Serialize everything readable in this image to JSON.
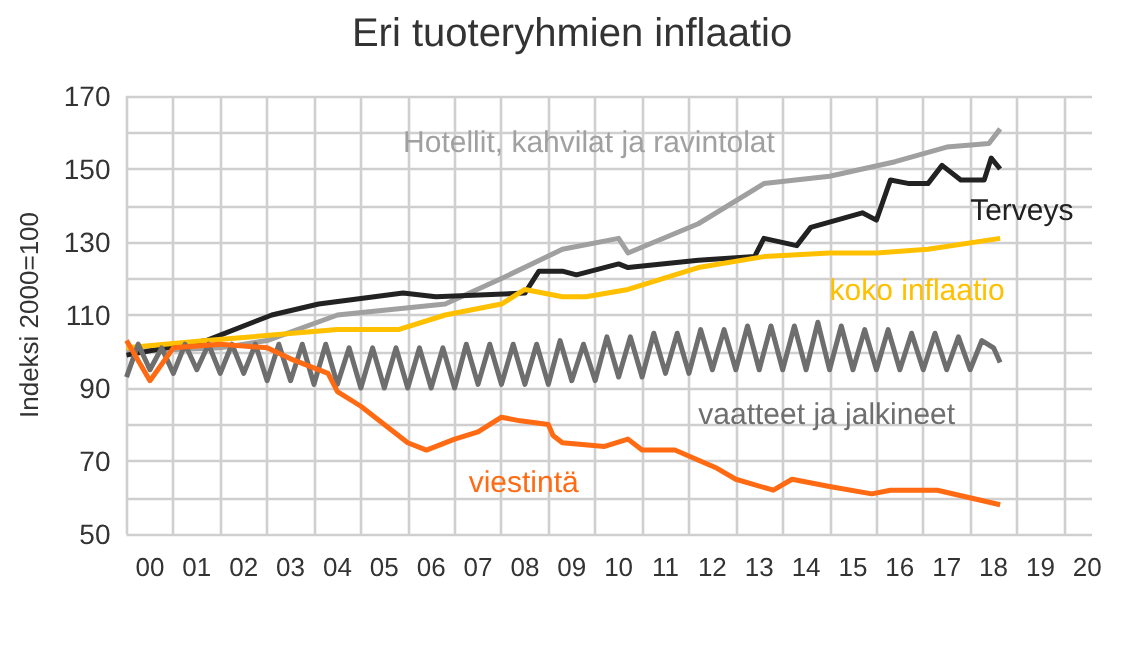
{
  "chart_data": {
    "type": "line",
    "title": "Eri tuoteryhmien inflaatio",
    "ylabel": "Indeksi 2000=100",
    "xlim": [
      -0.5,
      20.1
    ],
    "ylim": [
      50,
      170
    ],
    "xticks": [
      {
        "value": 0,
        "label": "00"
      },
      {
        "value": 1,
        "label": "01"
      },
      {
        "value": 2,
        "label": "02"
      },
      {
        "value": 3,
        "label": "03"
      },
      {
        "value": 4,
        "label": "04"
      },
      {
        "value": 5,
        "label": "05"
      },
      {
        "value": 6,
        "label": "06"
      },
      {
        "value": 7,
        "label": "07"
      },
      {
        "value": 8,
        "label": "08"
      },
      {
        "value": 9,
        "label": "09"
      },
      {
        "value": 10,
        "label": "10"
      },
      {
        "value": 11,
        "label": "11"
      },
      {
        "value": 12,
        "label": "12"
      },
      {
        "value": 13,
        "label": "13"
      },
      {
        "value": 14,
        "label": "14"
      },
      {
        "value": 15,
        "label": "15"
      },
      {
        "value": 16,
        "label": "16"
      },
      {
        "value": 17,
        "label": "17"
      },
      {
        "value": 18,
        "label": "18"
      },
      {
        "value": 19,
        "label": "19"
      },
      {
        "value": 20,
        "label": "20"
      }
    ],
    "yticks": [
      50,
      {
        "value": 60,
        "label": null
      },
      70,
      {
        "value": 80,
        "label": null
      },
      90,
      {
        "value": 100,
        "label": null
      },
      110,
      {
        "value": 120,
        "label": null
      },
      130,
      {
        "value": 140,
        "label": null
      },
      150,
      {
        "value": 160,
        "label": null
      },
      170
    ],
    "grid": true,
    "marker": "none",
    "series": [
      {
        "name": "Hotellit, kahvilat ja ravintolat",
        "color": "#a0a0a0",
        "x": [
          -0.5,
          1.5,
          2.5,
          4,
          6.3,
          7.5,
          8.8,
          10,
          10.2,
          11.7,
          13.1,
          14.5,
          15.9,
          17,
          17.9,
          18.14
        ],
        "values": [
          100,
          101,
          103,
          110,
          113,
          120,
          128,
          131,
          127,
          135,
          146,
          148,
          152,
          156,
          157,
          161
        ]
      },
      {
        "name": "Terveys",
        "color": "#222222",
        "x": [
          -0.5,
          1.2,
          2.6,
          3.6,
          5.4,
          6.1,
          8,
          8.3,
          8.8,
          9.1,
          10,
          10.2,
          11.7,
          12.9,
          13.1,
          13.8,
          14.1,
          15.2,
          15.5,
          15.8,
          16.2,
          16.6,
          16.9,
          17.3,
          17.8,
          17.95,
          18.14
        ],
        "values": [
          99,
          103,
          110,
          113,
          116,
          115,
          116,
          122,
          122,
          121,
          124,
          123,
          125,
          126,
          131,
          129,
          134,
          138,
          136,
          147,
          146,
          146,
          151,
          147,
          147,
          153,
          150
        ]
      },
      {
        "name": "koko inflaatio",
        "color": "#ffc000",
        "x": [
          -0.5,
          1.2,
          4,
          5.3,
          6.3,
          7.5,
          8,
          8.8,
          9.3,
          10.2,
          11.7,
          13.1,
          14.5,
          15.5,
          16.6,
          18.14
        ],
        "values": [
          101,
          103,
          106,
          106,
          110,
          113,
          117,
          115,
          115,
          117,
          123,
          126,
          127,
          127,
          128,
          131
        ]
      },
      {
        "name": "vaatteet ja jalkineet",
        "color": "#6e6e6e",
        "x": [
          -0.5,
          -0.25,
          0,
          0.25,
          0.5,
          0.75,
          1,
          1.25,
          1.5,
          1.75,
          2,
          2.25,
          2.5,
          2.75,
          3,
          3.25,
          3.5,
          3.75,
          4,
          4.25,
          4.5,
          4.75,
          5,
          5.25,
          5.5,
          5.75,
          6,
          6.25,
          6.5,
          6.75,
          7,
          7.25,
          7.5,
          7.75,
          8,
          8.25,
          8.5,
          8.75,
          9,
          9.25,
          9.5,
          9.75,
          10,
          10.25,
          10.5,
          10.75,
          11,
          11.25,
          11.5,
          11.75,
          12,
          12.25,
          12.5,
          12.75,
          13,
          13.25,
          13.5,
          13.75,
          14,
          14.25,
          14.5,
          14.75,
          15,
          15.25,
          15.5,
          15.75,
          16,
          16.25,
          16.5,
          16.75,
          17,
          17.25,
          17.5,
          17.75,
          18,
          18.14
        ],
        "values": [
          93,
          102,
          95,
          101,
          94,
          102,
          95,
          102,
          94,
          102,
          94,
          102,
          92,
          102,
          92,
          102,
          91,
          102,
          91,
          101,
          90,
          101,
          90,
          101,
          90,
          101,
          90,
          101,
          90,
          102,
          91,
          102,
          91,
          102,
          91,
          102,
          91,
          103,
          92,
          102,
          92,
          104,
          93,
          104,
          93,
          105,
          94,
          105,
          94,
          106,
          95,
          106,
          95,
          107,
          95,
          107,
          95,
          107,
          95,
          108,
          95,
          107,
          95,
          106,
          95,
          106,
          95,
          105,
          95,
          105,
          95,
          104,
          95,
          103,
          101,
          97
        ]
      },
      {
        "name": "viestintä",
        "color": "#ff6a13",
        "x": [
          -0.5,
          0,
          0.5,
          1.5,
          2.5,
          3,
          3.8,
          4,
          4.5,
          5,
          5.5,
          5.9,
          6.5,
          7,
          7.5,
          7.9,
          8.5,
          8.6,
          8.8,
          9.7,
          10.2,
          10.5,
          11.2,
          12.1,
          12.5,
          13.3,
          13.7,
          14.5,
          15.4,
          15.8,
          16.8,
          18.14
        ],
        "values": [
          103,
          92,
          101,
          102,
          101,
          98,
          94,
          89,
          85,
          80,
          75,
          73,
          76,
          78,
          82,
          81,
          80,
          77,
          75,
          74,
          76,
          73,
          73,
          68,
          65,
          62,
          65,
          63,
          61,
          62,
          62,
          58
        ]
      }
    ]
  }
}
